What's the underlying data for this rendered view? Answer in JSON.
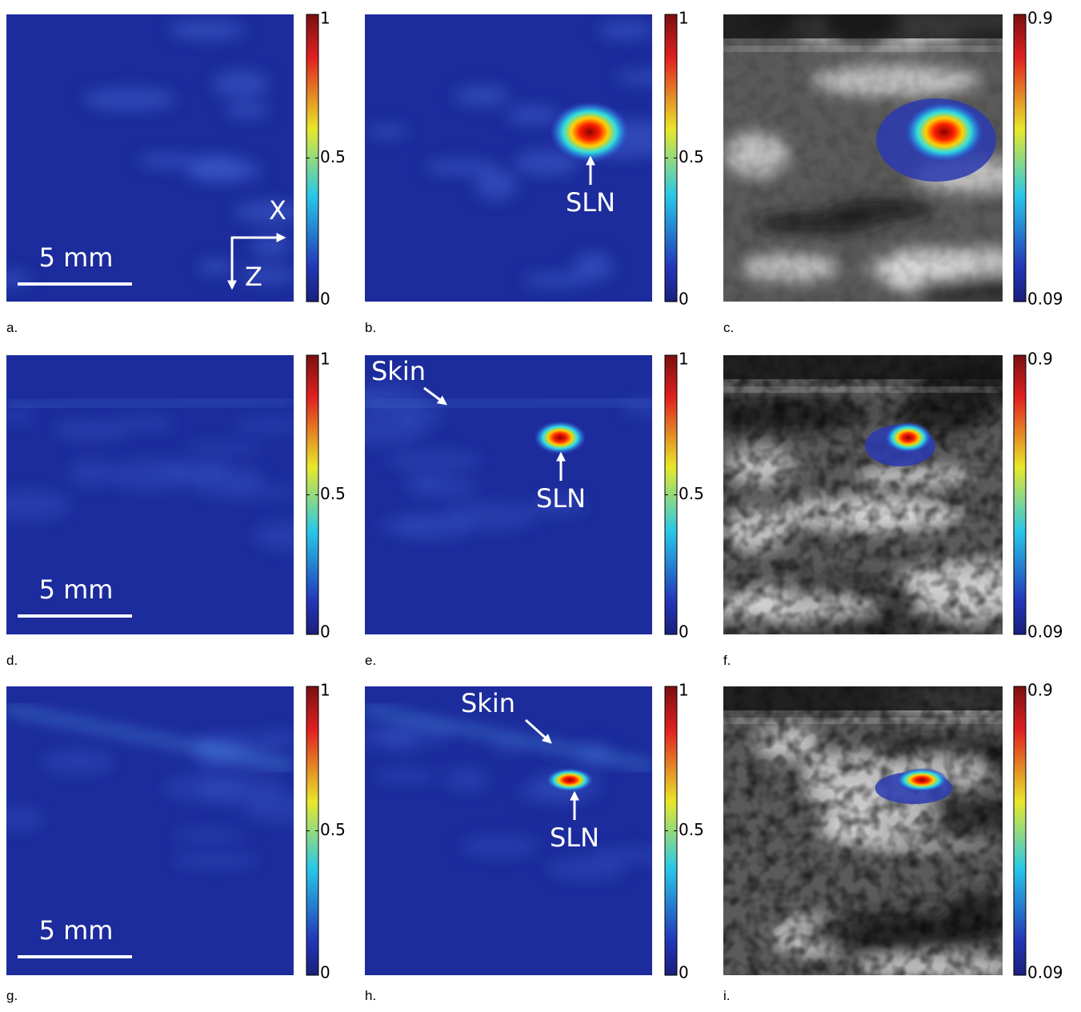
{
  "panels": [
    {
      "label": "a.",
      "colorbar": {
        "lim": [
          0,
          1
        ],
        "ticks": [
          0,
          0.5,
          1
        ]
      },
      "scale_bar": "5 mm",
      "axes": [
        "X",
        "Z"
      ]
    },
    {
      "label": "b.",
      "colorbar": {
        "lim": [
          0,
          1
        ],
        "ticks": [
          0,
          0.5,
          1
        ]
      },
      "target": "SLN"
    },
    {
      "label": "c.",
      "colorbar": {
        "lim": [
          0.09,
          0.9
        ],
        "ticks": [
          0.09,
          0.9
        ]
      }
    },
    {
      "label": "d.",
      "colorbar": {
        "lim": [
          0,
          1
        ],
        "ticks": [
          0,
          0.5,
          1
        ]
      },
      "scale_bar": "5 mm"
    },
    {
      "label": "e.",
      "colorbar": {
        "lim": [
          0,
          1
        ],
        "ticks": [
          0,
          0.5,
          1
        ]
      },
      "skin": "Skin",
      "target": "SLN"
    },
    {
      "label": "f.",
      "colorbar": {
        "lim": [
          0.09,
          0.9
        ],
        "ticks": [
          0.09,
          0.9
        ]
      }
    },
    {
      "label": "g.",
      "colorbar": {
        "lim": [
          0,
          1
        ],
        "ticks": [
          0,
          0.5,
          1
        ]
      },
      "scale_bar": "5 mm"
    },
    {
      "label": "h.",
      "colorbar": {
        "lim": [
          0,
          1
        ],
        "ticks": [
          0,
          0.5,
          1
        ]
      },
      "skin": "Skin",
      "target": "SLN"
    },
    {
      "label": "i.",
      "colorbar": {
        "lim": [
          0.09,
          0.9
        ],
        "ticks": [
          0.09,
          0.9
        ]
      }
    }
  ]
}
